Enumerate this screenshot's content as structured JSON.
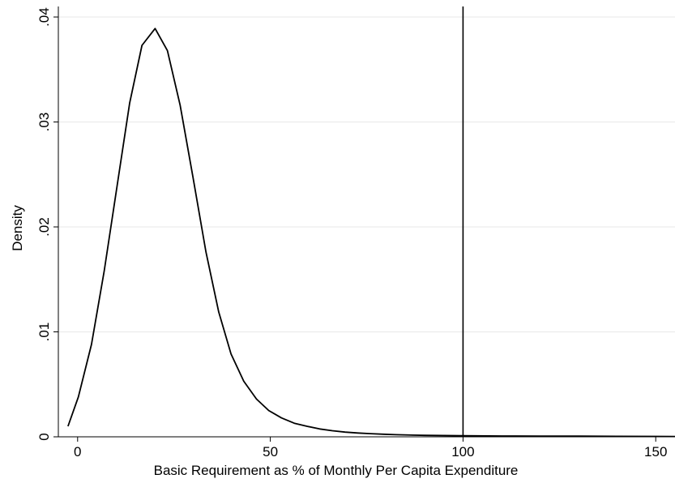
{
  "chart_data": {
    "type": "line",
    "title": "",
    "xlabel": "Basic Requirement as % of Monthly Per Capita Expenditure",
    "ylabel": "Density",
    "xlim": [
      -5,
      155
    ],
    "ylim": [
      0,
      0.04
    ],
    "x_ticks": [
      0,
      50,
      100,
      150
    ],
    "x_tick_labels": [
      "0",
      "50",
      "100",
      "150"
    ],
    "y_ticks": [
      0,
      0.01,
      0.02,
      0.03,
      0.04
    ],
    "y_tick_labels": [
      "0",
      ".01",
      ".02",
      ".03",
      ".04"
    ],
    "grid": "horizontal",
    "legend": "none",
    "reference_line": {
      "axis": "x",
      "value": 100
    },
    "series": [
      {
        "x": [
          -2.5,
          0.2,
          3.6,
          6.9,
          10.2,
          13.5,
          16.7,
          20.1,
          23.3,
          26.6,
          29.9,
          33.3,
          36.6,
          39.8,
          43.1,
          46.4,
          49.6,
          52.9,
          56.2,
          59.5,
          62.8,
          66.1,
          69.4,
          72.7,
          76,
          79.3,
          82.6,
          90,
          100,
          110,
          120,
          130,
          140,
          150,
          155
        ],
        "y": [
          0.001,
          0.0038,
          0.0088,
          0.0158,
          0.0238,
          0.0318,
          0.0373,
          0.0389,
          0.0368,
          0.0316,
          0.0248,
          0.0176,
          0.0119,
          0.0079,
          0.0053,
          0.0036,
          0.0025,
          0.0018,
          0.0013,
          0.001,
          0.00075,
          0.00058,
          0.00045,
          0.00036,
          0.0003,
          0.00025,
          0.0002,
          0.00014,
          0.0001,
          8e-05,
          7e-05,
          6e-05,
          5e-05,
          4e-05,
          3e-05
        ]
      }
    ]
  }
}
